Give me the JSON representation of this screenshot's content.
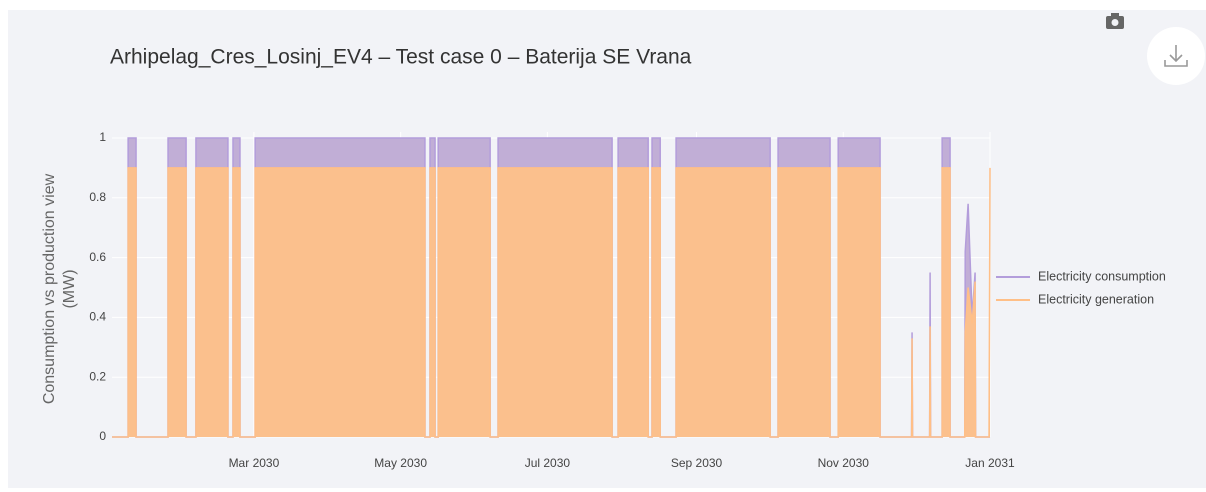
{
  "chart_data": {
    "type": "area",
    "title": "Arhipelag_Cres_Losinj_EV4 – Test case 0 – Baterija SE Vrana",
    "ylabel": [
      "Consumption vs production view",
      "(MW)"
    ],
    "xlim": [
      0,
      365
    ],
    "xticks": [
      {
        "value": 59,
        "label": "Mar 2030"
      },
      {
        "value": 120,
        "label": "May 2030"
      },
      {
        "value": 181,
        "label": "Jul 2030"
      },
      {
        "value": 243,
        "label": "Sep 2030"
      },
      {
        "value": 304,
        "label": "Nov 2030"
      },
      {
        "value": 365,
        "label": "Jan 2031"
      }
    ],
    "ylim": [
      0,
      1.02
    ],
    "yticks": [
      0,
      0.2,
      0.4,
      0.6,
      0.8,
      1
    ],
    "grid": true,
    "legend": "right",
    "x": [
      0,
      6.7,
      6.7,
      10,
      10,
      23.3,
      23.3,
      30.8,
      30.8,
      34.9,
      34.9,
      48.2,
      48.2,
      50.3,
      50.3,
      53.2,
      53.2,
      59.5,
      59.5,
      130.1,
      130.1,
      132.2,
      132.2,
      134.3,
      134.3,
      135.6,
      135.6,
      157.2,
      157.2,
      160.5,
      160.5,
      207.9,
      207.9,
      210.4,
      210.4,
      222.9,
      222.9,
      224.5,
      224.5,
      227.9,
      227.9,
      234.5,
      234.5,
      273.6,
      273.6,
      276.9,
      276.9,
      298.5,
      298.5,
      301.9,
      301.9,
      319.3,
      319.3,
      332.4,
      332.6,
      332.8,
      339.9,
      340.1,
      340.3,
      345.1,
      345.1,
      348.4,
      348.4,
      354.5,
      354.7,
      355.9,
      357.6,
      358.8,
      359,
      364.6,
      365
    ],
    "series": [
      {
        "name": "Electricity consumption",
        "color": "#b39ddb",
        "fill": "#c1aed6",
        "values": [
          0,
          0,
          1,
          1,
          0,
          0,
          1,
          1,
          0,
          0,
          1,
          1,
          0,
          0,
          1,
          1,
          0,
          0,
          1,
          1,
          0,
          0,
          1,
          1,
          0,
          0,
          1,
          1,
          0,
          0,
          1,
          1,
          0,
          0,
          1,
          1,
          0,
          0,
          1,
          1,
          0,
          0,
          1,
          1,
          0,
          0,
          1,
          1,
          0,
          0,
          1,
          1,
          0,
          0,
          0.35,
          0,
          0,
          0.55,
          0,
          0,
          1,
          1,
          0,
          0,
          0.62,
          0.78,
          0.4,
          0.55,
          0,
          0,
          0
        ]
      },
      {
        "name": "Electricity generation",
        "color": "#ffbf87",
        "fill": "#fbc08d",
        "values": [
          0,
          0,
          0.9,
          0.9,
          0,
          0,
          0.9,
          0.9,
          0,
          0,
          0.9,
          0.9,
          0,
          0,
          0.9,
          0.9,
          0,
          0,
          0.9,
          0.9,
          0,
          0,
          0.9,
          0.9,
          0,
          0,
          0.9,
          0.9,
          0,
          0,
          0.9,
          0.9,
          0,
          0,
          0.9,
          0.9,
          0,
          0,
          0.9,
          0.9,
          0,
          0,
          0.9,
          0.9,
          0,
          0,
          0.9,
          0.9,
          0,
          0,
          0.9,
          0.9,
          0,
          0,
          0.33,
          0,
          0,
          0.37,
          0,
          0,
          0.9,
          0.9,
          0,
          0,
          0.35,
          0.5,
          0.38,
          0.52,
          0,
          0,
          0.9
        ]
      }
    ]
  }
}
